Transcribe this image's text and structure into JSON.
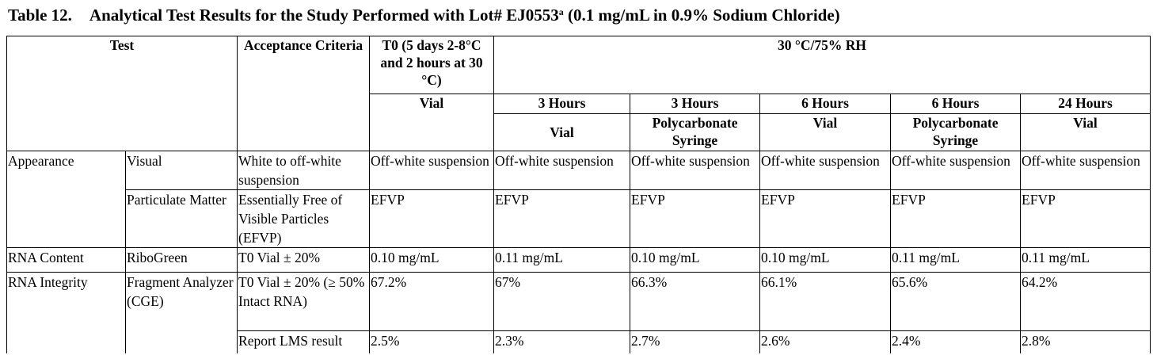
{
  "caption": {
    "label": "Table 12.",
    "title_main": "Analytical Test Results for the Study Performed with Lot# EJ0553",
    "title_sup": "a",
    "title_tail": " (0.1 mg/mL in 0.9% Sodium Chloride)"
  },
  "header": {
    "test": "Test",
    "acceptance": "Acceptance Criteria",
    "t0": "T0 (5 days 2-8°C and 2 hours at 30 °C)",
    "t0_container": "Vial",
    "condition": "30 °C/75% RH",
    "timepoints": [
      {
        "time": "3 Hours",
        "container": "Vial"
      },
      {
        "time": "3 Hours",
        "container": "Polycarbonate Syringe"
      },
      {
        "time": "6 Hours",
        "container": "Vial"
      },
      {
        "time": "6 Hours",
        "container": "Polycarbonate Syringe"
      },
      {
        "time": "24 Hours",
        "container": "Vial"
      }
    ]
  },
  "rows": [
    {
      "group": "Appearance",
      "method": "Visual",
      "criteria": "White to off-white suspension",
      "values": [
        "Off-white suspension",
        "Off-white suspension",
        "Off-white suspension",
        "Off-white suspension",
        "Off-white suspension",
        "Off-white suspension"
      ]
    },
    {
      "group": "",
      "method": "Particulate Matter",
      "criteria": "Essentially Free of Visible Particles (EFVP)",
      "values": [
        "EFVP",
        "EFVP",
        "EFVP",
        "EFVP",
        "EFVP",
        "EFVP"
      ]
    },
    {
      "group": "RNA Content",
      "method": "RiboGreen",
      "criteria": "T0 Vial ± 20%",
      "values": [
        "0.10 mg/mL",
        "0.11 mg/mL",
        "0.10 mg/mL",
        "0.10 mg/mL",
        "0.11 mg/mL",
        "0.11 mg/mL"
      ]
    },
    {
      "group": "RNA Integrity",
      "method": "Fragment Analyzer (CGE)",
      "criteria": "T0 Vial ± 20%  (≥ 50% Intact RNA)",
      "values": [
        "67.2%",
        "67%",
        "66.3%",
        "66.1%",
        "65.6%",
        "64.2%"
      ]
    },
    {
      "group": "",
      "method": "",
      "criteria": "Report LMS result",
      "values": [
        "2.5%",
        "2.3%",
        "2.7%",
        "2.6%",
        "2.4%",
        "2.8%"
      ]
    }
  ]
}
